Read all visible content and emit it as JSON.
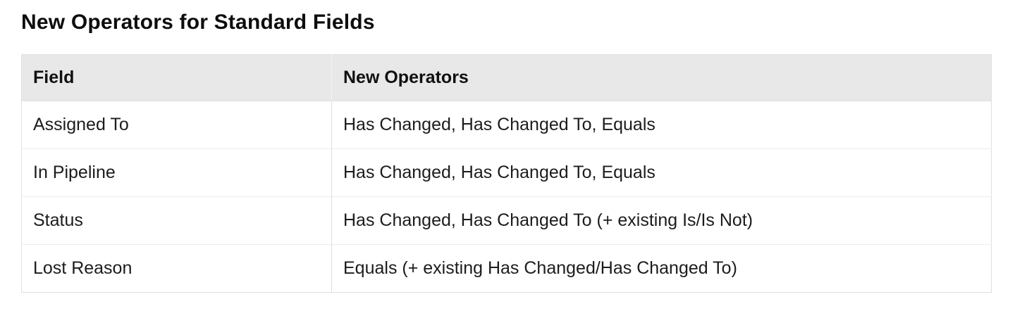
{
  "page": {
    "title": "New Operators for Standard Fields"
  },
  "table": {
    "columns": [
      {
        "label": "Field"
      },
      {
        "label": "New Operators"
      }
    ],
    "rows": [
      {
        "field": "Assigned To",
        "operators": "Has Changed, Has Changed To, Equals"
      },
      {
        "field": "In Pipeline",
        "operators": "Has Changed, Has Changed To, Equals"
      },
      {
        "field": "Status",
        "operators": "Has Changed, Has Changed To (+ existing Is/Is Not)"
      },
      {
        "field": "Lost Reason",
        "operators": "Equals (+ existing Has Changed/Has Changed To)"
      }
    ]
  },
  "colors": {
    "header_bg": "#e8e8e8",
    "outer_border": "#e0e0e0",
    "row_divider": "#ececec",
    "column_divider": "#dddddd",
    "text": "#1a1a1a"
  }
}
